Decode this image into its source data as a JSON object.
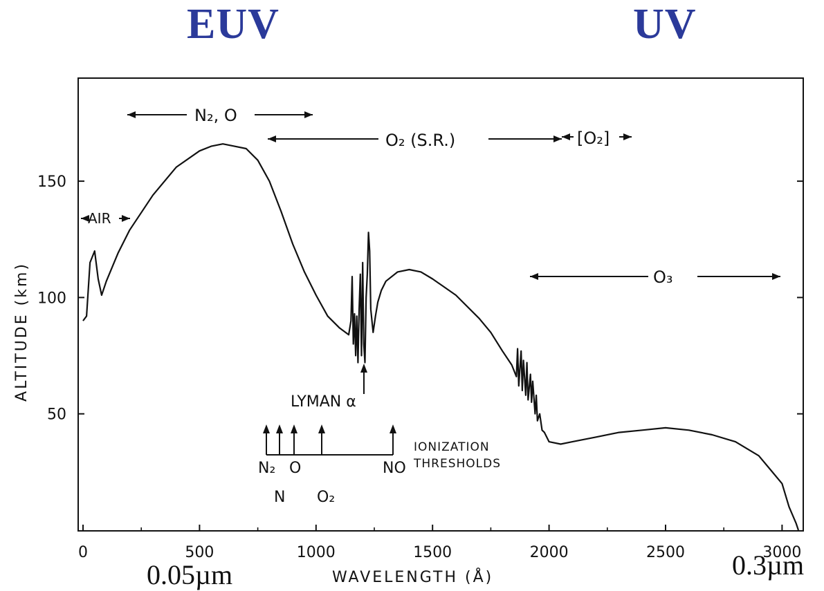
{
  "colors": {
    "header": "#2b3a9a",
    "ink": "#111111"
  },
  "header": {
    "left": "EUV",
    "right": "UV"
  },
  "bottom_labels": {
    "left": "0.05µm",
    "right": "0.3µm"
  },
  "chart_data": {
    "type": "line",
    "title": "",
    "xlabel": "WAVELENGTH (Å)",
    "ylabel": "ALTITUDE (km)",
    "xlim": [
      0,
      3100
    ],
    "ylim": [
      0,
      195
    ],
    "xticks": [
      0,
      500,
      1000,
      1500,
      2000,
      2500,
      3000
    ],
    "yticks": [
      50,
      100,
      150
    ],
    "grid": false,
    "series": [
      {
        "x": [
          0,
          15,
          30,
          50,
          65,
          80,
          100,
          150,
          200,
          300,
          400,
          500,
          550,
          600,
          650,
          700,
          750,
          800,
          850,
          900,
          950,
          1000,
          1050,
          1100,
          1140,
          1150,
          1155,
          1160,
          1165,
          1170,
          1175,
          1180,
          1185,
          1190,
          1195,
          1200,
          1205,
          1210,
          1215,
          1220,
          1225,
          1230,
          1235,
          1245,
          1255,
          1265,
          1280,
          1300,
          1350,
          1400,
          1450,
          1500,
          1600,
          1700,
          1750,
          1800,
          1840,
          1860,
          1865,
          1870,
          1880,
          1885,
          1890,
          1900,
          1905,
          1910,
          1920,
          1925,
          1930,
          1940,
          1945,
          1950,
          1960,
          1970,
          1980,
          2000,
          2050,
          2100,
          2200,
          2300,
          2400,
          2500,
          2600,
          2700,
          2800,
          2900,
          2950,
          3000,
          3030,
          3060,
          3070
        ],
        "y": [
          90,
          92,
          115,
          120,
          108,
          101,
          107,
          119,
          129,
          144,
          156,
          163,
          165,
          166,
          165,
          164,
          159,
          150,
          137,
          123,
          111,
          101,
          92,
          87,
          84,
          90,
          109,
          80,
          93,
          75,
          92,
          72,
          95,
          110,
          75,
          115,
          80,
          72,
          100,
          110,
          128,
          120,
          95,
          85,
          92,
          98,
          103,
          107,
          111,
          112,
          111,
          108,
          101,
          91,
          85,
          77,
          71,
          66,
          78,
          62,
          77,
          60,
          73,
          58,
          72,
          56,
          67,
          55,
          64,
          50,
          58,
          47,
          50,
          43,
          42,
          38,
          37,
          38,
          40,
          42,
          43,
          44,
          43,
          41,
          38,
          32,
          26,
          20,
          10,
          3,
          0
        ]
      }
    ],
    "annotations": {
      "n2o": "N₂, O",
      "o2sr": "O₂ (S.R.)",
      "o2b": "[O₂]",
      "air": "AIR",
      "o3": "O₃",
      "lyman": "LYMAN α",
      "ion1": "IONIZATION",
      "ion2": "THRESHOLDS",
      "n2": "N₂",
      "n": "N",
      "o": "O",
      "o2": "O₂",
      "no": "NO"
    }
  }
}
